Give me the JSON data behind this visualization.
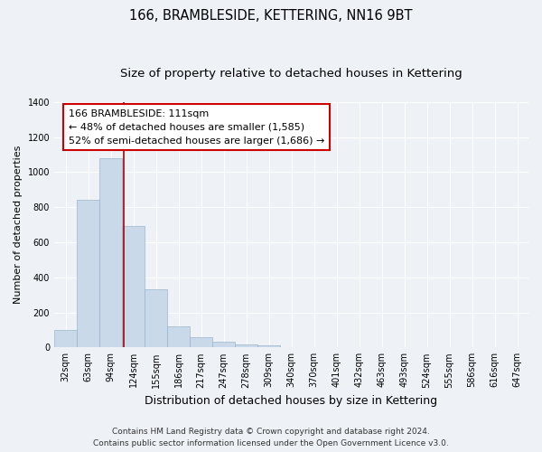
{
  "title": "166, BRAMBLESIDE, KETTERING, NN16 9BT",
  "subtitle": "Size of property relative to detached houses in Kettering",
  "xlabel": "Distribution of detached houses by size in Kettering",
  "ylabel": "Number of detached properties",
  "bar_labels": [
    "32sqm",
    "63sqm",
    "94sqm",
    "124sqm",
    "155sqm",
    "186sqm",
    "217sqm",
    "247sqm",
    "278sqm",
    "309sqm",
    "340sqm",
    "370sqm",
    "401sqm",
    "432sqm",
    "463sqm",
    "493sqm",
    "524sqm",
    "555sqm",
    "586sqm",
    "616sqm",
    "647sqm"
  ],
  "bar_values": [
    100,
    840,
    1080,
    695,
    330,
    120,
    60,
    30,
    15,
    10,
    0,
    0,
    0,
    0,
    0,
    0,
    0,
    0,
    0,
    0,
    0
  ],
  "bar_color": "#c9d9ea",
  "bar_edgecolor": "#9bb5cc",
  "vline_color": "#aa0000",
  "vline_x_index": 2.57,
  "annotation_text": "166 BRAMBLESIDE: 111sqm\n← 48% of detached houses are smaller (1,585)\n52% of semi-detached houses are larger (1,686) →",
  "annotation_box_facecolor": "#ffffff",
  "annotation_box_edgecolor": "#cc0000",
  "ylim": [
    0,
    1400
  ],
  "yticks": [
    0,
    200,
    400,
    600,
    800,
    1000,
    1200,
    1400
  ],
  "bg_color": "#eef2f7",
  "grid_color": "#ffffff",
  "footer_line1": "Contains HM Land Registry data © Crown copyright and database right 2024.",
  "footer_line2": "Contains public sector information licensed under the Open Government Licence v3.0.",
  "title_fontsize": 10.5,
  "subtitle_fontsize": 9.5,
  "xlabel_fontsize": 9,
  "ylabel_fontsize": 8,
  "tick_fontsize": 7,
  "annotation_fontsize": 8,
  "footer_fontsize": 6.5
}
